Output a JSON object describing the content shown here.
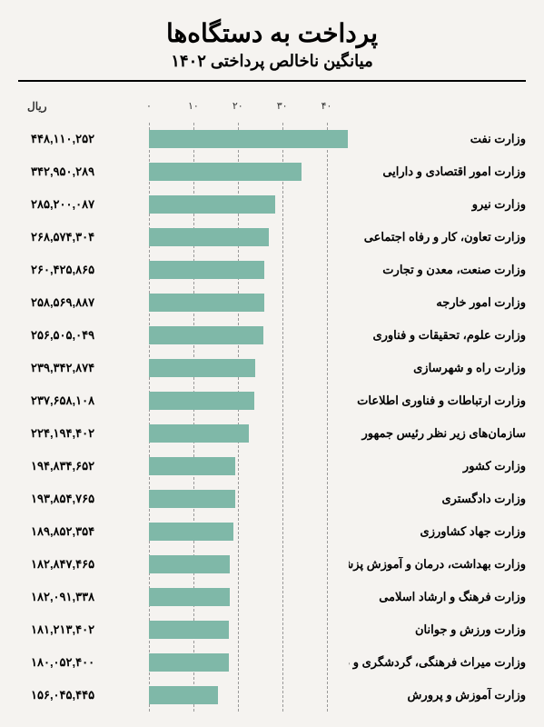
{
  "header": {
    "title": "پرداخت به دستگاه‌ها",
    "subtitle": "میانگین ناخالص پرداختی ۱۴۰۲"
  },
  "chart": {
    "type": "bar",
    "currency_label": "ریال",
    "bar_color": "#7fb8a8",
    "background_color": "#f5f3f0",
    "grid_color": "#999999",
    "max_value": 45,
    "axis_ticks": [
      {
        "pos": 0,
        "label": "۰"
      },
      {
        "pos": 10,
        "label": "۱۰"
      },
      {
        "pos": 20,
        "label": "۲۰"
      },
      {
        "pos": 30,
        "label": "۳۰"
      },
      {
        "pos": 40,
        "label": "۴۰"
      }
    ],
    "rows": [
      {
        "name": "وزارت نفت",
        "value_text": "۴۴۸,۱۱۰,۲۵۲",
        "bar_value": 44.8
      },
      {
        "name": "وزارت امور اقتصادی و دارایی",
        "value_text": "۳۴۲,۹۵۰,۲۸۹",
        "bar_value": 34.3
      },
      {
        "name": "وزارت نیرو",
        "value_text": "۲۸۵,۲۰۰,۰۸۷",
        "bar_value": 28.5
      },
      {
        "name": "وزارت تعاون، کار و رفاه اجتماعی",
        "value_text": "۲۶۸,۵۷۴,۳۰۴",
        "bar_value": 26.9
      },
      {
        "name": "وزارت صنعت، معدن و تجارت",
        "value_text": "۲۶۰,۴۲۵,۸۶۵",
        "bar_value": 26.0
      },
      {
        "name": "وزارت امور خارجه",
        "value_text": "۲۵۸,۵۶۹,۸۸۷",
        "bar_value": 25.9
      },
      {
        "name": "وزارت علوم، تحقیقات و فناوری",
        "value_text": "۲۵۶,۵۰۵,۰۴۹",
        "bar_value": 25.7
      },
      {
        "name": "وزارت راه و شهرسازی",
        "value_text": "۲۳۹,۳۴۲,۸۷۴",
        "bar_value": 23.9
      },
      {
        "name": "وزارت ارتباطات و فناوری اطلاعات",
        "value_text": "۲۳۷,۶۵۸,۱۰۸",
        "bar_value": 23.8
      },
      {
        "name": "سازمان‌های زیر نظر رئیس جمهور",
        "value_text": "۲۲۴,۱۹۴,۴۰۲",
        "bar_value": 22.4
      },
      {
        "name": "وزارت کشور",
        "value_text": "۱۹۴,۸۳۴,۶۵۲",
        "bar_value": 19.5
      },
      {
        "name": "وزارت دادگستری",
        "value_text": "۱۹۳,۸۵۴,۷۶۵",
        "bar_value": 19.4
      },
      {
        "name": "وزارت جهاد کشاورزی",
        "value_text": "۱۸۹,۸۵۲,۳۵۴",
        "bar_value": 19.0
      },
      {
        "name": "وزارت بهداشت، درمان و آموزش پزشکی",
        "value_text": "۱۸۲,۸۴۷,۴۶۵",
        "bar_value": 18.3
      },
      {
        "name": "وزارت فرهنگ و ارشاد اسلامی",
        "value_text": "۱۸۲,۰۹۱,۳۳۸",
        "bar_value": 18.2
      },
      {
        "name": "وزارت ورزش و جوانان",
        "value_text": "۱۸۱,۲۱۳,۴۰۲",
        "bar_value": 18.1
      },
      {
        "name": "وزارت میراث فرهنگی، گردشگری و صنایع دستی",
        "value_text": "۱۸۰,۰۵۲,۴۰۰",
        "bar_value": 18.0
      },
      {
        "name": "وزارت آموزش و پرورش",
        "value_text": "۱۵۶,۰۴۵,۴۴۵",
        "bar_value": 15.6
      }
    ]
  }
}
